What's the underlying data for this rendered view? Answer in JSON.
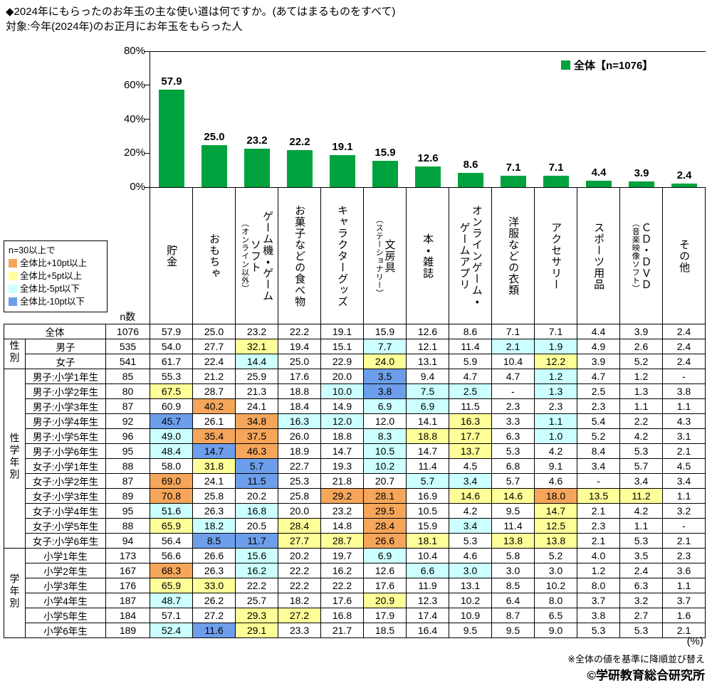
{
  "title": "◆2024年にもらったのお年玉の主な使い道は何ですか。(あてはまるものをすべて)",
  "subtitle": "対象:今年(2024年)のお正月にお年玉をもらった人",
  "legend": {
    "series_label": "全体【n=1076】"
  },
  "n_label": "n数",
  "colors": {
    "bar": "#00A23E",
    "orange": "#F5A65B",
    "yellow": "#FFFF99",
    "cyan": "#CCFFFF",
    "blue": "#6D9EEB"
  },
  "key_box": {
    "title": "n=30以上で",
    "items": [
      {
        "label": "全体比+10pt以上",
        "color_key": "orange"
      },
      {
        "label": "全体比+5pt以上",
        "color_key": "yellow"
      },
      {
        "label": "全体比-5pt以下",
        "color_key": "cyan"
      },
      {
        "label": "全体比-10pt以下",
        "color_key": "blue"
      }
    ]
  },
  "chart_data": {
    "type": "bar",
    "title": "◆2024年にもらったのお年玉の主な使い道は何ですか。(あてはまるものをすべて)",
    "series_name": "全体【n=1076】",
    "categories": [
      "貯金",
      "おもちゃ",
      "ゲーム機・ゲームソフト（オンライン以外）",
      "お菓子などの食べ物",
      "キャラクターグッズ",
      "文房具（ステーショナリー）",
      "本・雑誌",
      "オンラインゲーム・ゲームアプリ",
      "洋服などの衣類",
      "アクセサリー",
      "スポーツ用品",
      "ＣＤ・ＤＶＤ（音楽映像ソフト）",
      "その他"
    ],
    "values": [
      57.9,
      25.0,
      23.2,
      22.2,
      19.1,
      15.9,
      12.6,
      8.6,
      7.1,
      7.1,
      4.4,
      3.9,
      2.4
    ],
    "ylim": [
      0,
      80
    ],
    "yticks": [
      0,
      20,
      40,
      60,
      80
    ],
    "ytick_suffix": "%",
    "grid": false,
    "legend_position": "top-right",
    "bar_color": "#00A23E"
  },
  "table": {
    "columns": [
      {
        "main": "貯金",
        "sub": ""
      },
      {
        "main": "おもちゃ",
        "sub": ""
      },
      {
        "main": "ゲーム機・ゲーム\nソフト",
        "sub": "（オンライン以外）"
      },
      {
        "main": "お菓子などの食べ物",
        "sub": ""
      },
      {
        "main": "キャラクターグッズ",
        "sub": ""
      },
      {
        "main": "文房具",
        "sub": "（ステーショナリー）"
      },
      {
        "main": "本・雑誌",
        "sub": ""
      },
      {
        "main": "オンラインゲーム・\nゲームアプリ",
        "sub": ""
      },
      {
        "main": "洋服などの衣類",
        "sub": ""
      },
      {
        "main": "アクセサリー",
        "sub": ""
      },
      {
        "main": "スポーツ用品",
        "sub": ""
      },
      {
        "main": "ＣＤ・ＤＶＤ",
        "sub": "（音楽映像ソフト）"
      },
      {
        "main": "その他",
        "sub": ""
      }
    ],
    "groups": [
      {
        "label": "性別",
        "start": 1,
        "span": 2
      },
      {
        "label": "性学年別",
        "start": 3,
        "span": 12
      },
      {
        "label": "学年別",
        "start": 15,
        "span": 6
      }
    ],
    "rows": [
      {
        "label": "全体",
        "n": "1076",
        "values": [
          "57.9",
          "25.0",
          "23.2",
          "22.2",
          "19.1",
          "15.9",
          "12.6",
          "8.6",
          "7.1",
          "7.1",
          "4.4",
          "3.9",
          "2.4"
        ],
        "marks": [
          "",
          "",
          "",
          "",
          "",
          "",
          "",
          "",
          "",
          "",
          "",
          "",
          ""
        ]
      },
      {
        "label": "男子",
        "n": "535",
        "values": [
          "54.0",
          "27.7",
          "32.1",
          "19.4",
          "15.1",
          "7.7",
          "12.1",
          "11.4",
          "2.1",
          "1.9",
          "4.9",
          "2.6",
          "2.4"
        ],
        "marks": [
          "",
          "",
          "y",
          "",
          "",
          "c",
          "",
          "",
          "c",
          "c",
          "",
          "",
          ""
        ]
      },
      {
        "label": "女子",
        "n": "541",
        "values": [
          "61.7",
          "22.4",
          "14.4",
          "25.0",
          "22.9",
          "24.0",
          "13.1",
          "5.9",
          "10.4",
          "12.2",
          "3.9",
          "5.2",
          "2.4"
        ],
        "marks": [
          "",
          "",
          "c",
          "",
          "",
          "y",
          "",
          "",
          "",
          "y",
          "",
          "",
          ""
        ]
      },
      {
        "label": "男子:小学1年生",
        "n": "85",
        "values": [
          "55.3",
          "21.2",
          "25.9",
          "17.6",
          "20.0",
          "3.5",
          "9.4",
          "4.7",
          "4.7",
          "1.2",
          "4.7",
          "1.2",
          "-"
        ],
        "marks": [
          "",
          "",
          "",
          "",
          "",
          "b",
          "",
          "",
          "",
          "c",
          "",
          "",
          ""
        ]
      },
      {
        "label": "男子:小学2年生",
        "n": "80",
        "values": [
          "67.5",
          "28.7",
          "21.3",
          "18.8",
          "10.0",
          "3.8",
          "7.5",
          "2.5",
          "-",
          "1.3",
          "2.5",
          "1.3",
          "3.8"
        ],
        "marks": [
          "y",
          "",
          "",
          "",
          "c",
          "b",
          "c",
          "c",
          "",
          "c",
          "",
          "",
          ""
        ]
      },
      {
        "label": "男子:小学3年生",
        "n": "87",
        "values": [
          "60.9",
          "40.2",
          "24.1",
          "18.4",
          "14.9",
          "6.9",
          "6.9",
          "11.5",
          "2.3",
          "2.3",
          "2.3",
          "1.1",
          "1.1"
        ],
        "marks": [
          "",
          "o",
          "",
          "",
          "",
          "c",
          "c",
          "",
          "",
          "",
          "",
          "",
          ""
        ]
      },
      {
        "label": "男子:小学4年生",
        "n": "92",
        "values": [
          "45.7",
          "26.1",
          "34.8",
          "16.3",
          "12.0",
          "12.0",
          "14.1",
          "16.3",
          "3.3",
          "1.1",
          "5.4",
          "2.2",
          "4.3"
        ],
        "marks": [
          "b",
          "",
          "o",
          "c",
          "c",
          "",
          "",
          "y",
          "",
          "c",
          "",
          "",
          ""
        ]
      },
      {
        "label": "男子:小学5年生",
        "n": "96",
        "values": [
          "49.0",
          "35.4",
          "37.5",
          "26.0",
          "18.8",
          "8.3",
          "18.8",
          "17.7",
          "6.3",
          "1.0",
          "5.2",
          "4.2",
          "3.1"
        ],
        "marks": [
          "c",
          "o",
          "o",
          "",
          "",
          "c",
          "y",
          "y",
          "",
          "c",
          "",
          "",
          ""
        ]
      },
      {
        "label": "男子:小学6年生",
        "n": "95",
        "values": [
          "48.4",
          "14.7",
          "46.3",
          "18.9",
          "14.7",
          "10.5",
          "14.7",
          "13.7",
          "5.3",
          "4.2",
          "8.4",
          "5.3",
          "2.1"
        ],
        "marks": [
          "c",
          "b",
          "o",
          "",
          "",
          "c",
          "",
          "y",
          "",
          "",
          "",
          "",
          ""
        ]
      },
      {
        "label": "女子:小学1年生",
        "n": "88",
        "values": [
          "58.0",
          "31.8",
          "5.7",
          "22.7",
          "19.3",
          "10.2",
          "11.4",
          "4.5",
          "6.8",
          "9.1",
          "3.4",
          "5.7",
          "4.5"
        ],
        "marks": [
          "",
          "y",
          "b",
          "",
          "",
          "c",
          "",
          "",
          "",
          "",
          "",
          "",
          ""
        ]
      },
      {
        "label": "女子:小学2年生",
        "n": "87",
        "values": [
          "69.0",
          "24.1",
          "11.5",
          "25.3",
          "21.8",
          "20.7",
          "5.7",
          "3.4",
          "5.7",
          "4.6",
          "-",
          "3.4",
          "3.4"
        ],
        "marks": [
          "o",
          "",
          "b",
          "",
          "",
          "",
          "c",
          "c",
          "",
          "",
          "",
          "",
          ""
        ]
      },
      {
        "label": "女子:小学3年生",
        "n": "89",
        "values": [
          "70.8",
          "25.8",
          "20.2",
          "25.8",
          "29.2",
          "28.1",
          "16.9",
          "14.6",
          "14.6",
          "18.0",
          "13.5",
          "11.2",
          "1.1"
        ],
        "marks": [
          "o",
          "",
          "",
          "",
          "o",
          "o",
          "",
          "y",
          "y",
          "o",
          "y",
          "y",
          ""
        ]
      },
      {
        "label": "女子:小学4年生",
        "n": "95",
        "values": [
          "51.6",
          "26.3",
          "16.8",
          "20.0",
          "23.2",
          "29.5",
          "10.5",
          "4.2",
          "9.5",
          "14.7",
          "2.1",
          "4.2",
          "3.2"
        ],
        "marks": [
          "c",
          "",
          "c",
          "",
          "",
          "o",
          "",
          "",
          "",
          "y",
          "",
          "",
          ""
        ]
      },
      {
        "label": "女子:小学5年生",
        "n": "88",
        "values": [
          "65.9",
          "18.2",
          "20.5",
          "28.4",
          "14.8",
          "28.4",
          "15.9",
          "3.4",
          "11.4",
          "12.5",
          "2.3",
          "1.1",
          "-"
        ],
        "marks": [
          "y",
          "c",
          "",
          "y",
          "",
          "o",
          "",
          "c",
          "",
          "y",
          "",
          "",
          ""
        ]
      },
      {
        "label": "女子:小学6年生",
        "n": "94",
        "values": [
          "56.4",
          "8.5",
          "11.7",
          "27.7",
          "28.7",
          "26.6",
          "18.1",
          "5.3",
          "13.8",
          "13.8",
          "2.1",
          "5.3",
          "2.1"
        ],
        "marks": [
          "",
          "b",
          "b",
          "y",
          "y",
          "o",
          "y",
          "",
          "y",
          "y",
          "",
          "",
          ""
        ]
      },
      {
        "label": "小学1年生",
        "n": "173",
        "values": [
          "56.6",
          "26.6",
          "15.6",
          "20.2",
          "19.7",
          "6.9",
          "10.4",
          "4.6",
          "5.8",
          "5.2",
          "4.0",
          "3.5",
          "2.3"
        ],
        "marks": [
          "",
          "",
          "c",
          "",
          "",
          "c",
          "",
          "",
          "",
          "",
          "",
          "",
          ""
        ]
      },
      {
        "label": "小学2年生",
        "n": "167",
        "values": [
          "68.3",
          "26.3",
          "16.2",
          "22.2",
          "16.2",
          "12.6",
          "6.6",
          "3.0",
          "3.0",
          "3.0",
          "1.2",
          "2.4",
          "3.6"
        ],
        "marks": [
          "o",
          "",
          "c",
          "",
          "",
          "",
          "c",
          "c",
          "",
          "",
          "",
          "",
          ""
        ]
      },
      {
        "label": "小学3年生",
        "n": "176",
        "values": [
          "65.9",
          "33.0",
          "22.2",
          "22.2",
          "22.2",
          "17.6",
          "11.9",
          "13.1",
          "8.5",
          "10.2",
          "8.0",
          "6.3",
          "1.1"
        ],
        "marks": [
          "y",
          "y",
          "",
          "",
          "",
          "",
          "",
          "",
          "",
          "",
          "",
          "",
          ""
        ]
      },
      {
        "label": "小学4年生",
        "n": "187",
        "values": [
          "48.7",
          "26.2",
          "25.7",
          "18.2",
          "17.6",
          "20.9",
          "12.3",
          "10.2",
          "6.4",
          "8.0",
          "3.7",
          "3.2",
          "3.7"
        ],
        "marks": [
          "c",
          "",
          "",
          "",
          "",
          "y",
          "",
          "",
          "",
          "",
          "",
          "",
          ""
        ]
      },
      {
        "label": "小学5年生",
        "n": "184",
        "values": [
          "57.1",
          "27.2",
          "29.3",
          "27.2",
          "16.8",
          "17.9",
          "17.4",
          "10.9",
          "8.7",
          "6.5",
          "3.8",
          "2.7",
          "1.6"
        ],
        "marks": [
          "",
          "",
          "y",
          "y",
          "",
          "",
          "",
          "",
          "",
          "",
          "",
          "",
          ""
        ]
      },
      {
        "label": "小学6年生",
        "n": "189",
        "values": [
          "52.4",
          "11.6",
          "29.1",
          "23.3",
          "21.7",
          "18.5",
          "16.4",
          "9.5",
          "9.5",
          "9.0",
          "5.3",
          "5.3",
          "2.1"
        ],
        "marks": [
          "c",
          "b",
          "y",
          "",
          "",
          "",
          "",
          "",
          "",
          "",
          "",
          "",
          ""
        ]
      }
    ]
  },
  "footer": {
    "percent_label": "(%)",
    "sort_note": "※全体の値を基準に降順並び替え",
    "copyright": "©学研教育総合研究所"
  }
}
